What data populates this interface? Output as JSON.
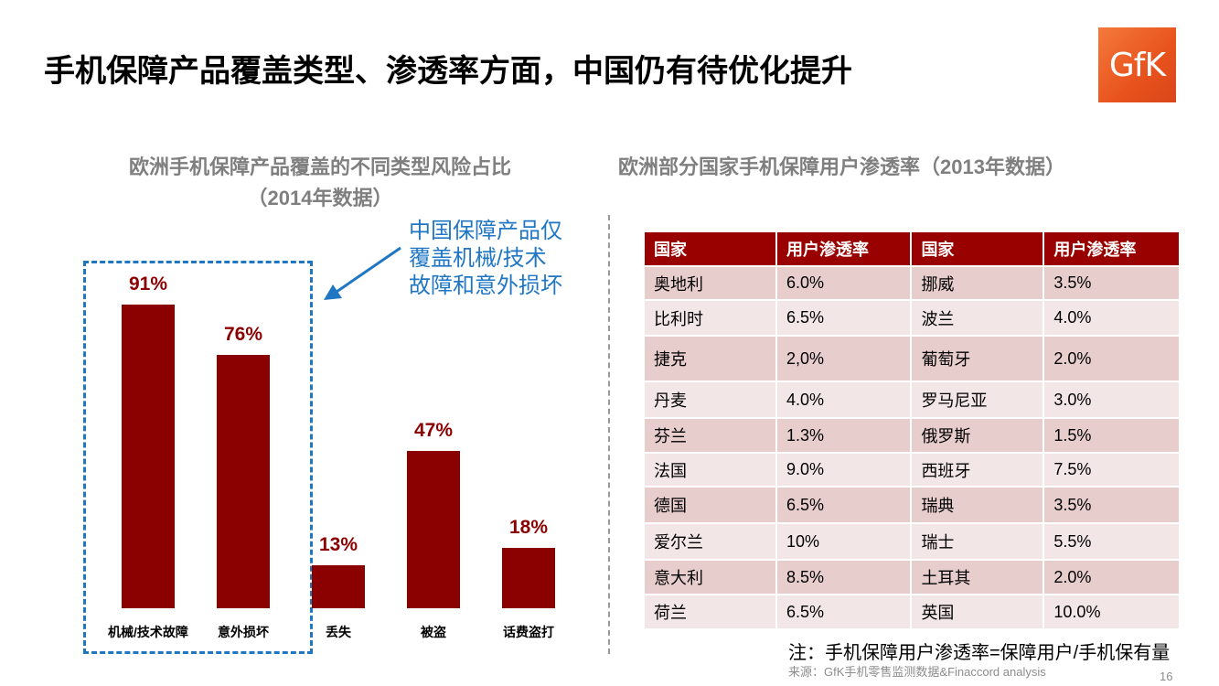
{
  "title": "手机保障产品覆盖类型、渗透率方面，中国仍有待优化提升",
  "logo": "GfK",
  "chart_data": {
    "type": "bar",
    "title": "欧洲手机保障产品覆盖的不同类型风险占比",
    "title_line2": "（2014年数据）",
    "categories": [
      "机械/技术故障",
      "意外损坏",
      "丢失",
      "被盗",
      "话费盗打"
    ],
    "values": [
      91,
      76,
      13,
      47,
      18
    ],
    "value_labels": [
      "91%",
      "76%",
      "13%",
      "47%",
      "18%"
    ],
    "unit": "%",
    "ylim": [
      0,
      100
    ],
    "grid": false,
    "bar_color": "#8b0000",
    "highlight_color": "#1f77c4",
    "callout": [
      "中国保障产品仅",
      "覆盖机械/技术",
      "故障和意外损坏"
    ]
  },
  "table": {
    "title": "欧洲部分国家手机保障用户渗透率（2013年数据）",
    "headers": [
      "国家",
      "用户渗透率",
      "国家",
      "用户渗透率"
    ],
    "header_color": "#990000",
    "rows": [
      [
        "奥地利",
        "6.0%",
        "挪威",
        "3.5%"
      ],
      [
        "比利时",
        "6.5%",
        "波兰",
        "4.0%"
      ],
      [
        "捷克",
        "2,0%",
        "葡萄牙",
        "2.0%"
      ],
      [
        "丹麦",
        "4.0%",
        "罗马尼亚",
        "3.0%"
      ],
      [
        "芬兰",
        "1.3%",
        "俄罗斯",
        "1.5%"
      ],
      [
        "法国",
        "9.0%",
        "西班牙",
        "7.5%"
      ],
      [
        "德国",
        "6.5%",
        "瑞典",
        "3.5%"
      ],
      [
        "爱尔兰",
        "10%",
        "瑞士",
        "5.5%"
      ],
      [
        "意大利",
        "8.5%",
        "土耳其",
        "2.0%"
      ],
      [
        "荷兰",
        "6.5%",
        "英国",
        "10.0%"
      ]
    ]
  },
  "note": "注：手机保障用户渗透率=保障用户/手机保有量",
  "source": "来源：GfK手机零售监测数据&Finaccord analysis",
  "page_number": "16"
}
